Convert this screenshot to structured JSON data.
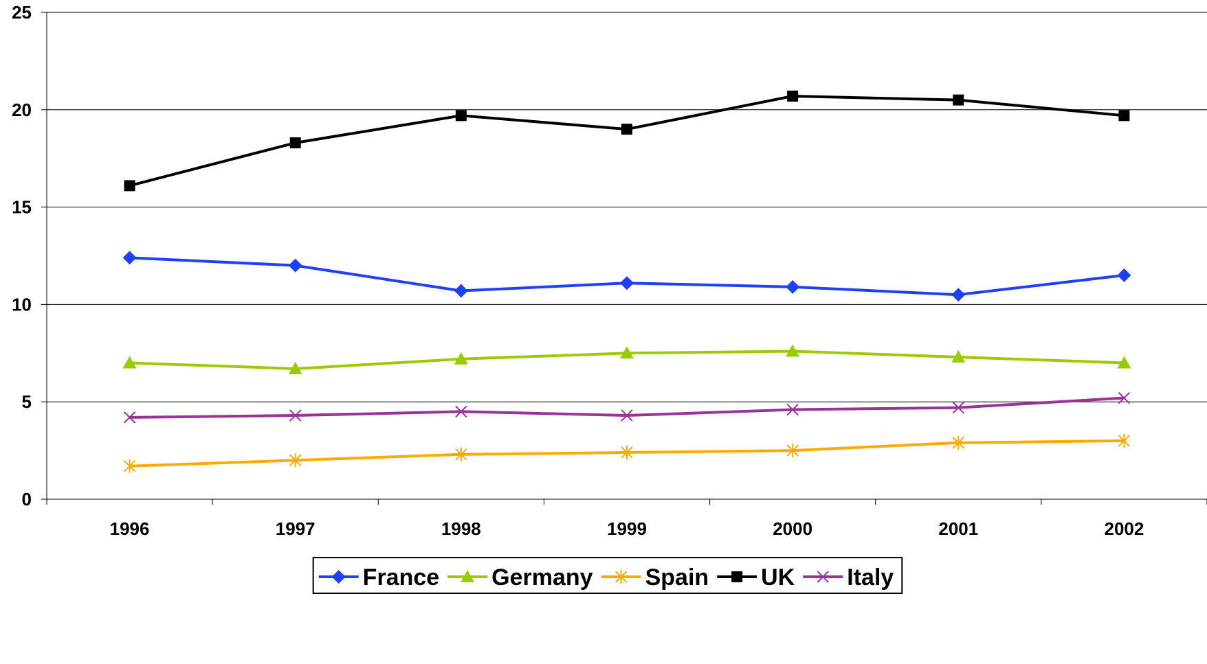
{
  "chart_data": {
    "type": "line",
    "title": "",
    "xlabel": "",
    "ylabel": "",
    "categories": [
      "1996",
      "1997",
      "1998",
      "1999",
      "2000",
      "2001",
      "2002"
    ],
    "ylim": [
      0,
      25
    ],
    "yticks": [
      0,
      5,
      10,
      15,
      20,
      25
    ],
    "grid": "horizontal",
    "legend_position": "bottom",
    "series": [
      {
        "name": "France",
        "color": "#1f3fff",
        "marker": "diamond",
        "values": [
          12.4,
          12.0,
          10.7,
          11.1,
          10.9,
          10.5,
          11.5
        ]
      },
      {
        "name": "Germany",
        "color": "#99cc00",
        "marker": "triangle",
        "values": [
          7.0,
          6.7,
          7.2,
          7.5,
          7.6,
          7.3,
          7.0
        ]
      },
      {
        "name": "Spain",
        "color": "#ffaa00",
        "marker": "asterisk",
        "values": [
          1.7,
          2.0,
          2.3,
          2.4,
          2.5,
          2.9,
          3.0
        ]
      },
      {
        "name": "UK",
        "color": "#000000",
        "marker": "square",
        "values": [
          16.1,
          18.3,
          19.7,
          19.0,
          20.7,
          20.5,
          19.7
        ]
      },
      {
        "name": "Italy",
        "color": "#993399",
        "marker": "x",
        "values": [
          4.2,
          4.3,
          4.5,
          4.3,
          4.6,
          4.7,
          5.2
        ]
      }
    ]
  }
}
